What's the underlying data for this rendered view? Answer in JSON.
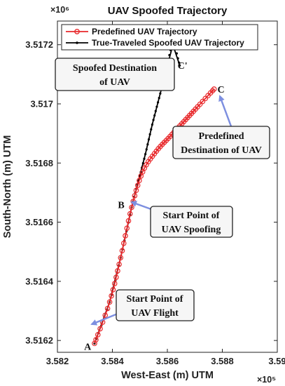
{
  "chart_data": {
    "type": "line",
    "title": "UAV Spoofed Trajectory",
    "xlabel": "West-East (m) UTM",
    "ylabel": "South-North (m) UTM",
    "x_exponent": "×10⁵",
    "y_exponent": "×10⁶",
    "x_scale": 100000,
    "y_scale": 1000000,
    "xlim": [
      3.582,
      3.59
    ],
    "ylim": [
      3.51616,
      3.51728
    ],
    "xticks": [
      "3.582",
      "3.584",
      "3.586",
      "3.588",
      "3.59"
    ],
    "yticks": [
      "3.5162",
      "3.5164",
      "3.5166",
      "3.5168",
      "3.517",
      "3.5172"
    ],
    "xtick_values": [
      3.582,
      3.584,
      3.586,
      3.588,
      3.59
    ],
    "ytick_values": [
      3.5162,
      3.5164,
      3.5166,
      3.5168,
      3.517,
      3.5172
    ],
    "grid": false,
    "legend_position": "top",
    "series": [
      {
        "name": "Predefined UAV Trajectory",
        "color": "#e8282b",
        "marker": "circle-open",
        "x": [
          3.58335,
          3.5839,
          3.5843,
          3.5847,
          3.5851,
          3.5856,
          3.5861,
          3.5866,
          3.5871,
          3.5877
        ],
        "y": [
          3.51619,
          3.51633,
          3.51648,
          3.51665,
          3.51677,
          3.51684,
          3.51689,
          3.51694,
          3.51699,
          3.51705
        ]
      },
      {
        "name": "True-Traveled Spoofed UAV Trajectory",
        "color": "#000000",
        "marker": "dot",
        "x": [
          3.58335,
          3.5839,
          3.5843,
          3.5847,
          3.58495,
          3.5852,
          3.58545,
          3.5857,
          3.58595,
          3.5862,
          3.58645
        ],
        "y": [
          3.51619,
          3.51633,
          3.51648,
          3.51665,
          3.51674,
          3.51683,
          3.51693,
          3.51702,
          3.51711,
          3.5172,
          3.51713
        ]
      }
    ],
    "point_labels": [
      {
        "text": "A",
        "x": 3.5831,
        "y": 3.51618
      },
      {
        "text": "B",
        "x": 3.58432,
        "y": 3.51666
      },
      {
        "text": "C",
        "x": 3.58795,
        "y": 3.51705
      },
      {
        "text": "C'",
        "x": 3.58655,
        "y": 3.51713
      }
    ],
    "annotations": [
      {
        "id": "spoofed-destination",
        "lines": [
          "Spoofed Destination",
          "of  UAV"
        ]
      },
      {
        "id": "predefined-destination",
        "lines": [
          "Predefined",
          "Destination of  UAV"
        ]
      },
      {
        "id": "start-spoofing",
        "lines": [
          "Start Point of",
          "UAV Spoofing"
        ]
      },
      {
        "id": "start-flight",
        "lines": [
          "Start Point of",
          "UAV Flight"
        ]
      }
    ]
  }
}
